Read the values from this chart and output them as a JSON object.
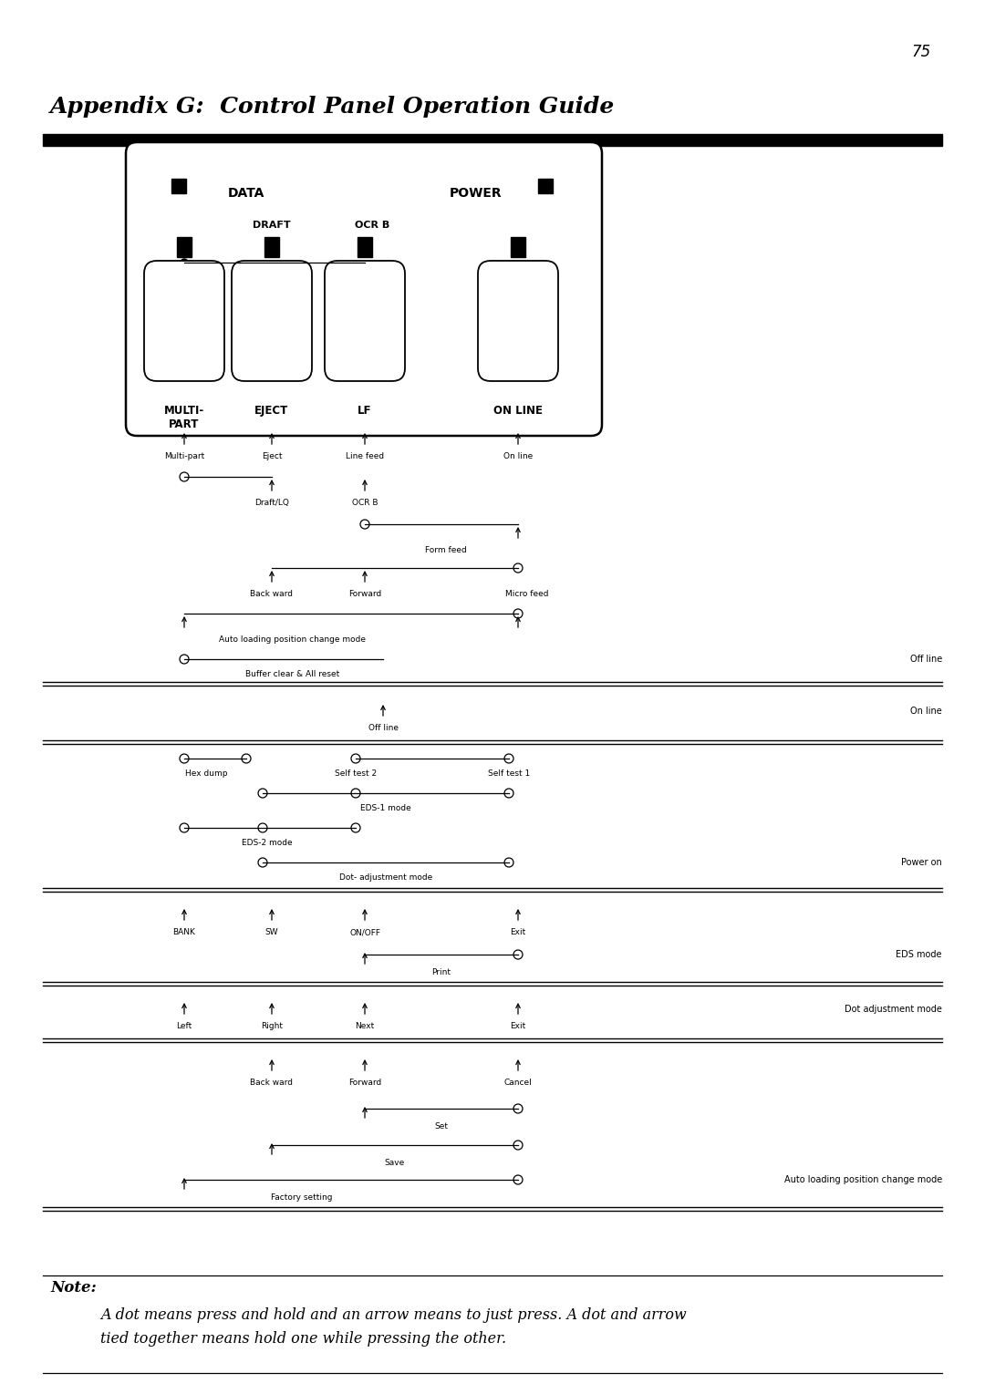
{
  "page_number": "75",
  "title": "Appendix G:  Control Panel Operation Guide",
  "note_title": "Note:",
  "note_text": "A dot means press and hold and an arrow means to just press. A dot and arrow\ntied together means hold one while pressing the other.",
  "bg_color": "#ffffff"
}
